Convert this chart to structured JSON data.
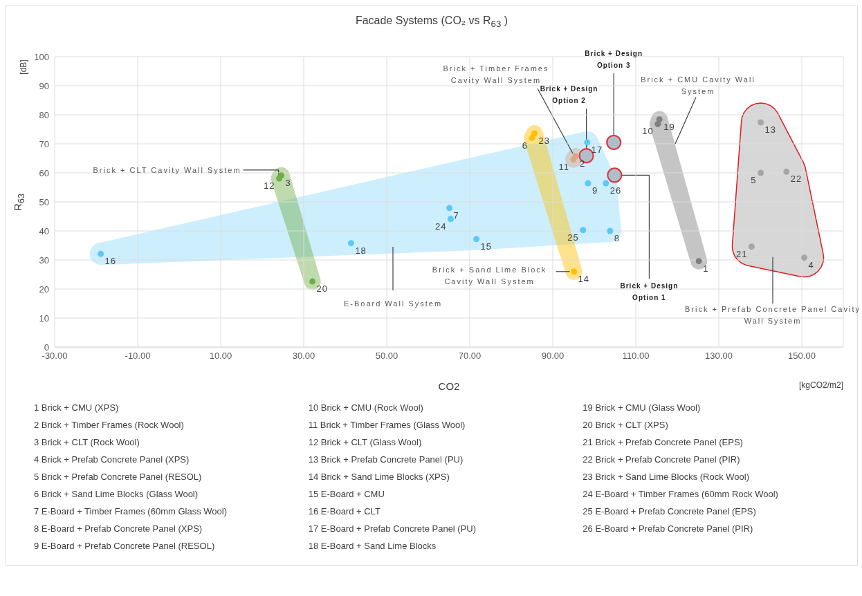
{
  "chart_data": {
    "type": "scatter",
    "title": "Facade Systems (CO₂ vs R$_{63}$ )",
    "xlabel": "CO2",
    "ylabel": "R$_{63}$",
    "xlim": [
      -30,
      160
    ],
    "xticks": [
      {
        "value": -30,
        "label": "-30.00"
      },
      {
        "value": -10,
        "label": "-10.00"
      },
      {
        "value": 10,
        "label": "10.00"
      },
      {
        "value": 30,
        "label": "30.00"
      },
      {
        "value": 50,
        "label": "50.00"
      },
      {
        "value": 70,
        "label": "70.00"
      },
      {
        "value": 90,
        "label": "90.00"
      },
      {
        "value": 110,
        "label": "110.00"
      },
      {
        "value": 130,
        "label": "130.00"
      },
      {
        "value": 150,
        "label": "150.00"
      }
    ],
    "ylim": [
      0,
      100
    ],
    "yticks": [
      0,
      10,
      20,
      30,
      40,
      50,
      60,
      70,
      80,
      90,
      100
    ],
    "grid": true,
    "legend": false,
    "marker": "circle",
    "series": [
      {
        "color": "#5ac8fa",
        "x": [
          65.1,
          65.4,
          103.8,
          97.3,
          98.5,
          71.6,
          102.8,
          -18.9,
          98.3,
          41.4
        ],
        "values": [
          47.9,
          44.1,
          40.0,
          40.3,
          56.4,
          37.2,
          56.4,
          32.1,
          70.5,
          35.8
        ]
      },
      {
        "color": "#7f7f7f",
        "x": [
          125.2,
          115.3,
          115.7
        ],
        "values": [
          29.6,
          76.8,
          78.4
        ]
      },
      {
        "color": "#d6a88a",
        "x": [
          95.5,
          95.0
        ],
        "values": [
          65.7,
          64.6
        ]
      },
      {
        "color": "#70ad47",
        "x": [
          24.6,
          24.1,
          32.1
        ],
        "values": [
          59.1,
          58.1,
          22.6
        ]
      },
      {
        "color": "#ffc000",
        "x": [
          95.1,
          85.0,
          85.6
        ],
        "values": [
          26.0,
          72.0,
          73.6
        ]
      },
      {
        "color": "#a6a6a6",
        "x": [
          140.1,
          140.1,
          146.3,
          137.9,
          150.6
        ],
        "values": [
          77.4,
          60.0,
          60.4,
          34.6,
          30.8
        ]
      },
      {
        "color": "#aebfca",
        "x": [
          104.9,
          98.1,
          104.7
        ],
        "values": [
          59.2,
          65.9,
          70.5
        ]
      }
    ],
    "annotations": [
      "[dB]",
      "[kgCO2/m2]",
      "E-Board Wall System",
      "Brick + CMU Cavity Wall System",
      "Brick + Prefab Concrete Panel Cavity Wall System",
      {
        "text": "Brick + CLT Cavity Wall System",
        "x": 24.6,
        "y": 59.1
      },
      {
        "text": "Brick + Sand Lime Block Cavity Wall System",
        "x": 95.1,
        "y": 26.0
      },
      {
        "text": "Brick + Timber Frames Cavity Wall System",
        "x": 95.5,
        "y": 65.7
      },
      {
        "text": "Brick + Design Option 2",
        "x": 98.1,
        "y": 65.9
      },
      {
        "text": "Brick + Design Option 3",
        "x": 104.7,
        "y": 70.5
      },
      {
        "text": "Brick + Design Option 1",
        "x": 104.9,
        "y": 59.2
      },
      {
        "text": "1",
        "x": 125.2,
        "y": 29.6
      },
      {
        "text": "2",
        "x": 95.5,
        "y": 65.7
      },
      {
        "text": "3",
        "x": 24.6,
        "y": 59.1
      },
      {
        "text": "4",
        "x": 150.6,
        "y": 30.8
      },
      {
        "text": "5",
        "x": 140.1,
        "y": 60.0
      },
      {
        "text": "6",
        "x": 85.0,
        "y": 72.0
      },
      {
        "text": "7",
        "x": 65.1,
        "y": 47.9
      },
      {
        "text": "8",
        "x": 103.8,
        "y": 40.0
      },
      {
        "text": "9",
        "x": 98.5,
        "y": 56.4
      },
      {
        "text": "10",
        "x": 115.3,
        "y": 76.8
      },
      {
        "text": "11",
        "x": 95.0,
        "y": 64.6
      },
      {
        "text": "12",
        "x": 24.1,
        "y": 58.1
      },
      {
        "text": "13",
        "x": 140.1,
        "y": 77.4
      },
      {
        "text": "14",
        "x": 95.1,
        "y": 26.0
      },
      {
        "text": "15",
        "x": 71.6,
        "y": 37.2
      },
      {
        "text": "16",
        "x": -18.9,
        "y": 32.1
      },
      {
        "text": "17",
        "x": 98.3,
        "y": 70.5
      },
      {
        "text": "18",
        "x": 41.4,
        "y": 35.8
      },
      {
        "text": "19",
        "x": 115.7,
        "y": 78.4
      },
      {
        "text": "20",
        "x": 32.1,
        "y": 22.6
      },
      {
        "text": "21",
        "x": 137.9,
        "y": 34.6
      },
      {
        "text": "22",
        "x": 146.3,
        "y": 60.4
      },
      {
        "text": "23",
        "x": 85.6,
        "y": 73.6
      },
      {
        "text": "24",
        "x": 65.4,
        "y": 44.1
      },
      {
        "text": "25",
        "x": 97.3,
        "y": 40.3
      },
      {
        "text": "26",
        "x": 102.8,
        "y": 56.4
      },
      "1 Brick + CMU (XPS)",
      "2 Brick + Timber Frames (Rock Wool)",
      "3 Brick + CLT (Rock Wool)",
      "4 Brick + Prefab Concrete Panel (XPS)",
      "5 Brick + Prefab Concrete Panel (RESOL)",
      "6 Brick + Sand Lime Blocks (Glass Wool)",
      "7 E-Board + Timber Frames (60mm Glass Wool)",
      "8 E-Board + Prefab Concrete Panel (XPS)",
      "9 E-Board + Prefab Concrete Panel (RESOL)",
      "10 Brick + CMU (Rock Wool)",
      "11 Brick + Timber Frames (Glass Wool)",
      "12 Brick + CLT (Glass Wool)",
      "13 Brick + Prefab Concrete Panel (PU)",
      "14 Brick + Sand Lime Blocks (XPS)",
      "15 E-Board + CMU",
      "16 E-Board + CLT",
      "17 E-Board + Prefab Concrete Panel (PU)",
      "18 E-Board + Sand Lime Blocks",
      "19 Brick + CMU (Glass Wool)",
      "20 Brick + CLT (XPS)",
      "21 Brick + Prefab Concrete Panel (EPS)",
      "22 Brick + Prefab Concrete Panel (PIR)",
      "23 Brick + Sand Lime Blocks (Rock Wool)",
      "24 E-Board + Timber Frames (60mm Rock Wool)",
      "25 E-Board + Prefab Concrete Panel (EPS)",
      "26 E-Board + Prefab Concrete Panel (PIR)"
    ]
  }
}
